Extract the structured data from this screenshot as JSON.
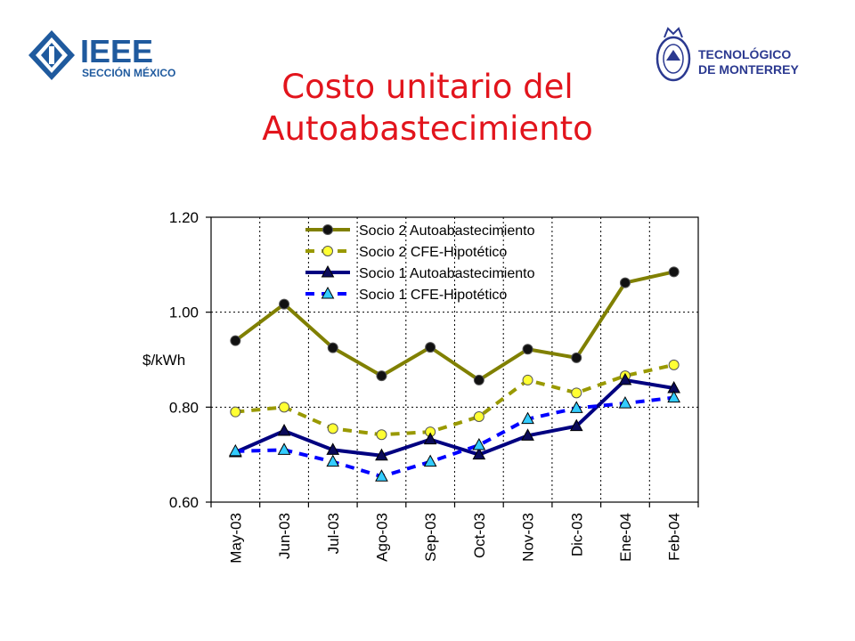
{
  "slide": {
    "title_line1": "Costo unitario del",
    "title_line2": "Autoabastecimiento"
  },
  "logos": {
    "left": {
      "text": "IEEE",
      "subtext": "SECCIÓN MÉXICO",
      "color": "#1f5a9e",
      "icon": "ieee-diamond-icon"
    },
    "right": {
      "line1": "TECNOLÓGICO",
      "line2": "DE MONTERREY",
      "color": "#2b3990",
      "icon": "tec-seal-icon"
    }
  },
  "chart_data": {
    "type": "line",
    "title": "",
    "xlabel": "",
    "ylabel": "$/kWh",
    "ylim": [
      0.6,
      1.2
    ],
    "yticks": [
      0.6,
      0.8,
      1.0,
      1.2
    ],
    "ytick_labels": [
      "0.60",
      "0.80",
      "1.00",
      "1.20"
    ],
    "grid": true,
    "legend_position": "top",
    "categories": [
      "May-03",
      "Jun-03",
      "Jul-03",
      "Ago-03",
      "Sep-03",
      "Oct-03",
      "Nov-03",
      "Dic-03",
      "Ene-04",
      "Feb-04"
    ],
    "series": [
      {
        "name": "Socio 2 Autoabastecimiento",
        "values": [
          0.94,
          1.017,
          0.925,
          0.866,
          0.926,
          0.857,
          0.922,
          0.904,
          1.062,
          1.085
        ],
        "color": "#808000",
        "style": "solid",
        "marker": "circle-dark"
      },
      {
        "name": "Socio 2 CFE-Hipotético",
        "values": [
          0.79,
          0.8,
          0.755,
          0.742,
          0.748,
          0.78,
          0.857,
          0.83,
          0.866,
          0.889
        ],
        "color": "#999900",
        "style": "dashed",
        "marker": "circle-yellow"
      },
      {
        "name": "Socio 1 Autoabastecimiento",
        "values": [
          0.705,
          0.75,
          0.71,
          0.698,
          0.732,
          0.7,
          0.74,
          0.76,
          0.857,
          0.84
        ],
        "color": "#000080",
        "style": "solid",
        "marker": "triangle-navy"
      },
      {
        "name": "Socio 1 CFE-Hipotético",
        "values": [
          0.707,
          0.71,
          0.685,
          0.654,
          0.685,
          0.72,
          0.775,
          0.798,
          0.808,
          0.82
        ],
        "color": "#0000ff",
        "style": "dashed",
        "marker": "triangle-cyan"
      }
    ]
  }
}
